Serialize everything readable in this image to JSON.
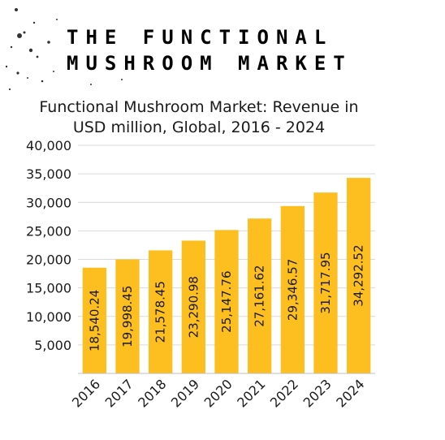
{
  "header": {
    "line1": "THE FUNCTIONAL",
    "line2": "MUSHROOM MARKET"
  },
  "colors": {
    "bar": "#FDBF1F",
    "grid": "#d9d9d9",
    "axis": "#bfbfbf",
    "text": "#1a1a1a"
  },
  "chart_data": {
    "type": "bar",
    "title_line1": "Functional Mushroom Market: Revenue in",
    "title_line2": "USD million, Global, 2016 - 2024",
    "xlabel": "",
    "ylabel": "",
    "ylim": [
      0,
      40000
    ],
    "yticks": [
      5000,
      10000,
      15000,
      20000,
      25000,
      30000,
      35000,
      40000
    ],
    "ytick_labels": [
      "5,000",
      "10,000",
      "15,000",
      "20,000",
      "25,000",
      "30,000",
      "35,000",
      "40,000"
    ],
    "grid": true,
    "legend": "none",
    "categories": [
      "2016",
      "2017",
      "2018",
      "2019",
      "2020",
      "2021",
      "2022",
      "2023",
      "2024"
    ],
    "values": [
      18540.24,
      19998.45,
      21578.45,
      23290.98,
      25147.76,
      27161.62,
      29346.57,
      31717.95,
      34292.52
    ],
    "value_labels": [
      "18,540.24",
      "19,998.45",
      "21,578.45",
      "23,290.98",
      "25,147.76",
      "27,161.62",
      "29,346.57",
      "31,717.95",
      "34,292.52"
    ]
  }
}
